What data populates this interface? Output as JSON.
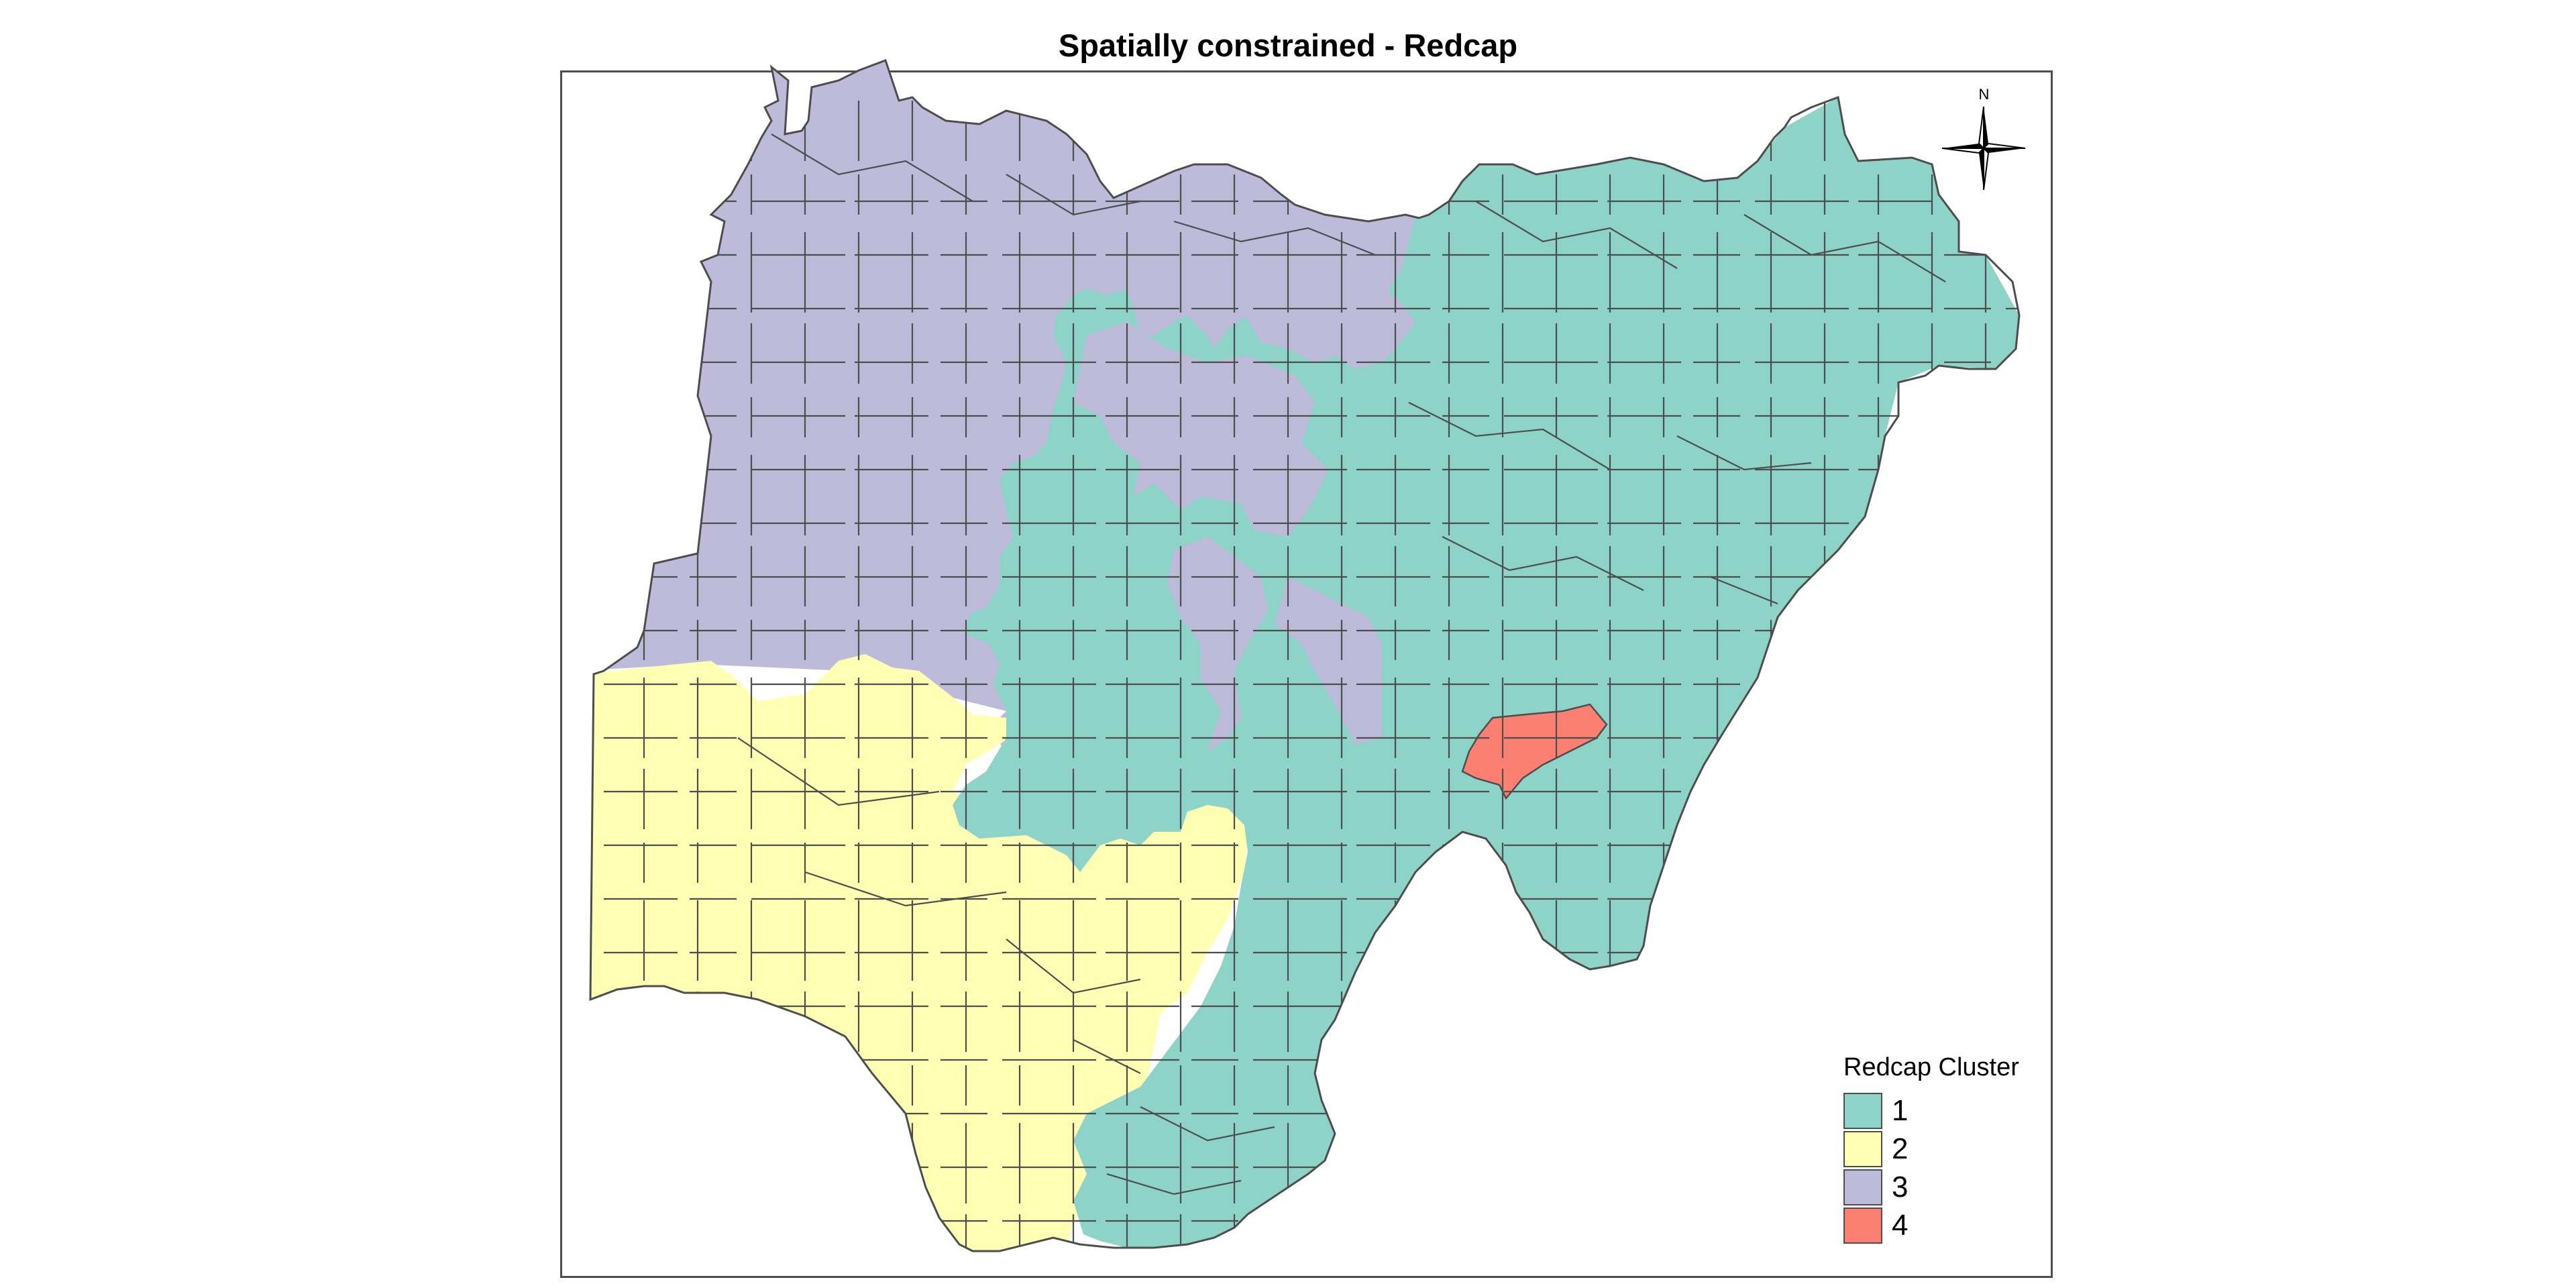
{
  "title": "Spatially constrained - Redcap",
  "compass": {
    "north_label": "N",
    "icon": "north-arrow-compass-rose"
  },
  "legend": {
    "title": "Redcap Cluster",
    "items": [
      {
        "label": "1",
        "color": "#8DD3C7"
      },
      {
        "label": "2",
        "color": "#FFFFB3"
      },
      {
        "label": "3",
        "color": "#BEBADA"
      },
      {
        "label": "4",
        "color": "#FB8072"
      }
    ]
  },
  "colors": {
    "border": "#4d4d4d",
    "frame": "#4d4d4d",
    "background": "#ffffff"
  }
}
